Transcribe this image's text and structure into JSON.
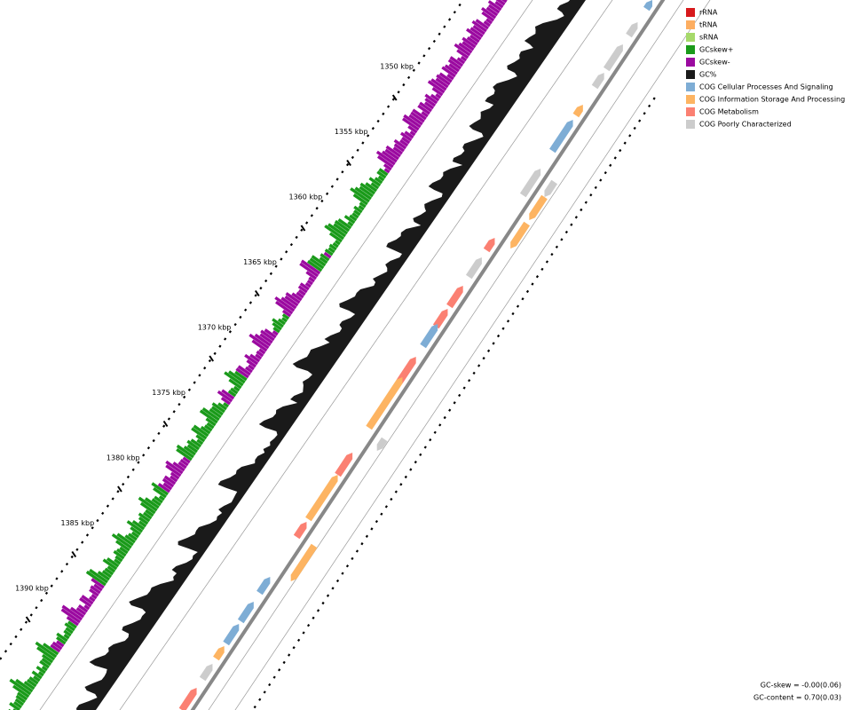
{
  "legend": [
    {
      "label": "rRNA",
      "color": "#d7191c"
    },
    {
      "label": "tRNA",
      "color": "#fdae61"
    },
    {
      "label": "sRNA",
      "color": "#a6d96a"
    },
    {
      "label": "GCskew+",
      "color": "#1a9a1a"
    },
    {
      "label": "GCskew-",
      "color": "#9b0aa0"
    },
    {
      "label": "GC%",
      "color": "#1a1a1a"
    },
    {
      "label": "COG Cellular Processes And Signaling",
      "color": "#7eadd5"
    },
    {
      "label": "COG Information Storage And Processing",
      "color": "#fdb462"
    },
    {
      "label": "COG Metabolism",
      "color": "#fb8072"
    },
    {
      "label": "COG Poorly Characterized",
      "color": "#cccccc"
    }
  ],
  "scale_labels": [
    "1350 kbp",
    "1355 kbp",
    "1360 kbp",
    "1365 kbp",
    "1370 kbp",
    "1375 kbp",
    "1380 kbp",
    "1385 kbp",
    "1390 kbp"
  ],
  "stats": [
    "GC-skew = -0.00(0.06)",
    "GC-content = 0.70(0.03)"
  ]
}
